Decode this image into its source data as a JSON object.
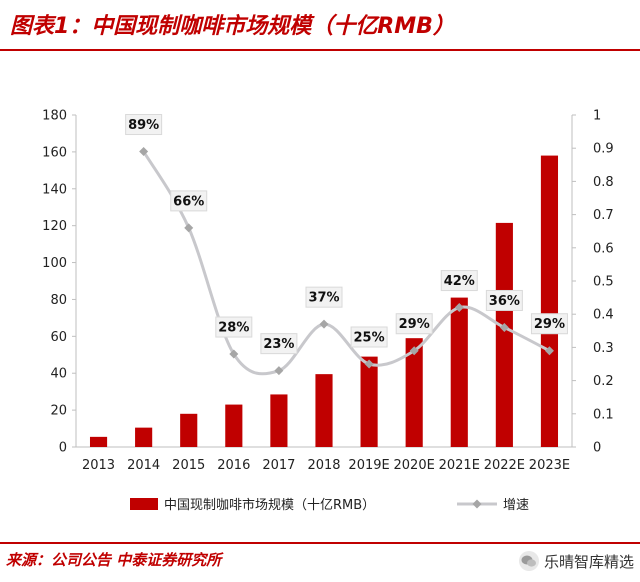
{
  "title": "图表1：中国现制咖啡市场规模（十亿RMB）",
  "source": "来源：公司公告 中泰证券研究所",
  "watermark": "乐晴智库精选",
  "colors": {
    "bar": "#c00000",
    "line": "#c8c8cc",
    "marker": "#a6a6a6",
    "accent": "#c00000"
  },
  "chart_data": {
    "type": "bar",
    "categories": [
      "2013",
      "2014",
      "2015",
      "2016",
      "2017",
      "2018",
      "2019E",
      "2020E",
      "2021E",
      "2022E",
      "2023E"
    ],
    "series": [
      {
        "name": "中国现制咖啡市场规模（十亿RMB）",
        "type": "bar",
        "axis": "left",
        "values": [
          5.5,
          10.5,
          18,
          23,
          28.5,
          39.5,
          49,
          59,
          81,
          121.5,
          158
        ]
      },
      {
        "name": "增速",
        "type": "line",
        "axis": "right",
        "values": [
          null,
          0.89,
          0.66,
          0.28,
          0.23,
          0.37,
          0.25,
          0.29,
          0.42,
          0.36,
          0.29
        ],
        "labels": [
          null,
          "89%",
          "66%",
          "28%",
          "23%",
          "37%",
          "25%",
          "29%",
          "42%",
          "36%",
          "29%"
        ]
      }
    ],
    "ylim_left": [
      0,
      180
    ],
    "yticks_left": [
      "0",
      "20",
      "40",
      "60",
      "80",
      "100",
      "120",
      "140",
      "160",
      "180"
    ],
    "ylim_right": [
      0,
      1
    ],
    "yticks_right": [
      "0",
      "0.1",
      "0.2",
      "0.3",
      "0.4",
      "0.5",
      "0.6",
      "0.7",
      "0.8",
      "0.9",
      "1"
    ],
    "grid": false,
    "legend_position": "bottom"
  }
}
